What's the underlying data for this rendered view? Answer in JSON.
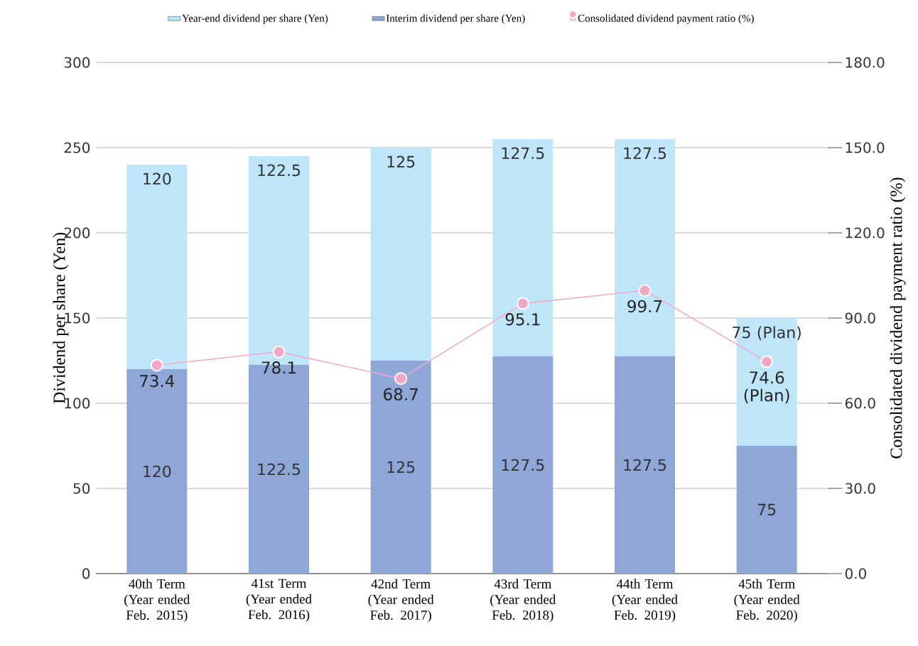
{
  "chart_data": {
    "type": "bar",
    "stacked": true,
    "categories": [
      "40th Term (Year ended Feb. 2015)",
      "41st Term (Year ended Feb. 2016)",
      "42nd Term (Year ended Feb. 2017)",
      "43rd Term (Year ended Feb. 2018)",
      "44th Term (Year ended Feb. 2019)",
      "45th Term (Year ended Feb. 2020)"
    ],
    "ylabel": "Dividend per share (Yen)",
    "y2label": "Consolidated dividend payment ratio (%)",
    "ylim": [
      0,
      300
    ],
    "yticks": [
      0,
      50,
      100,
      150,
      200,
      250,
      300
    ],
    "y2lim": [
      0,
      180
    ],
    "y2ticks": [
      {
        "value": 0,
        "label": "0.0"
      },
      {
        "value": 30,
        "label": "30.0"
      },
      {
        "value": 60,
        "label": "60.0"
      },
      {
        "value": 90,
        "label": "90.0"
      },
      {
        "value": 120,
        "label": "120.0"
      },
      {
        "value": 150,
        "label": "150.0"
      },
      {
        "value": 180,
        "label": "180.0"
      }
    ],
    "grid": "y",
    "legend": "top",
    "series": [
      {
        "name": "Interim dividend per share (Yen)",
        "color": "#8fa7d7",
        "values": [
          120,
          122.5,
          125,
          127.5,
          127.5,
          75
        ],
        "value_labels": [
          "120",
          "122.5",
          "125",
          "127.5",
          "127.5",
          "75"
        ]
      },
      {
        "name": "Year-end dividend per share (Yen)",
        "color": "#bfe6f8",
        "values": [
          120,
          122.5,
          125,
          127.5,
          127.5,
          75
        ],
        "value_labels": [
          "120",
          "122.5",
          "125",
          "127.5",
          "127.5",
          "75 (Plan)"
        ]
      },
      {
        "name": "Consolidated dividend payment ratio (%)",
        "type": "line",
        "axis": "y2",
        "color": "#f2a7c6",
        "marker": "circle",
        "line_style": "solid",
        "values": [
          73.4,
          78.1,
          68.7,
          95.1,
          99.7,
          74.6
        ],
        "value_labels": [
          "73.4",
          "78.1",
          "68.7",
          "95.1",
          "99.7",
          "74.6 (Plan)"
        ]
      }
    ]
  }
}
